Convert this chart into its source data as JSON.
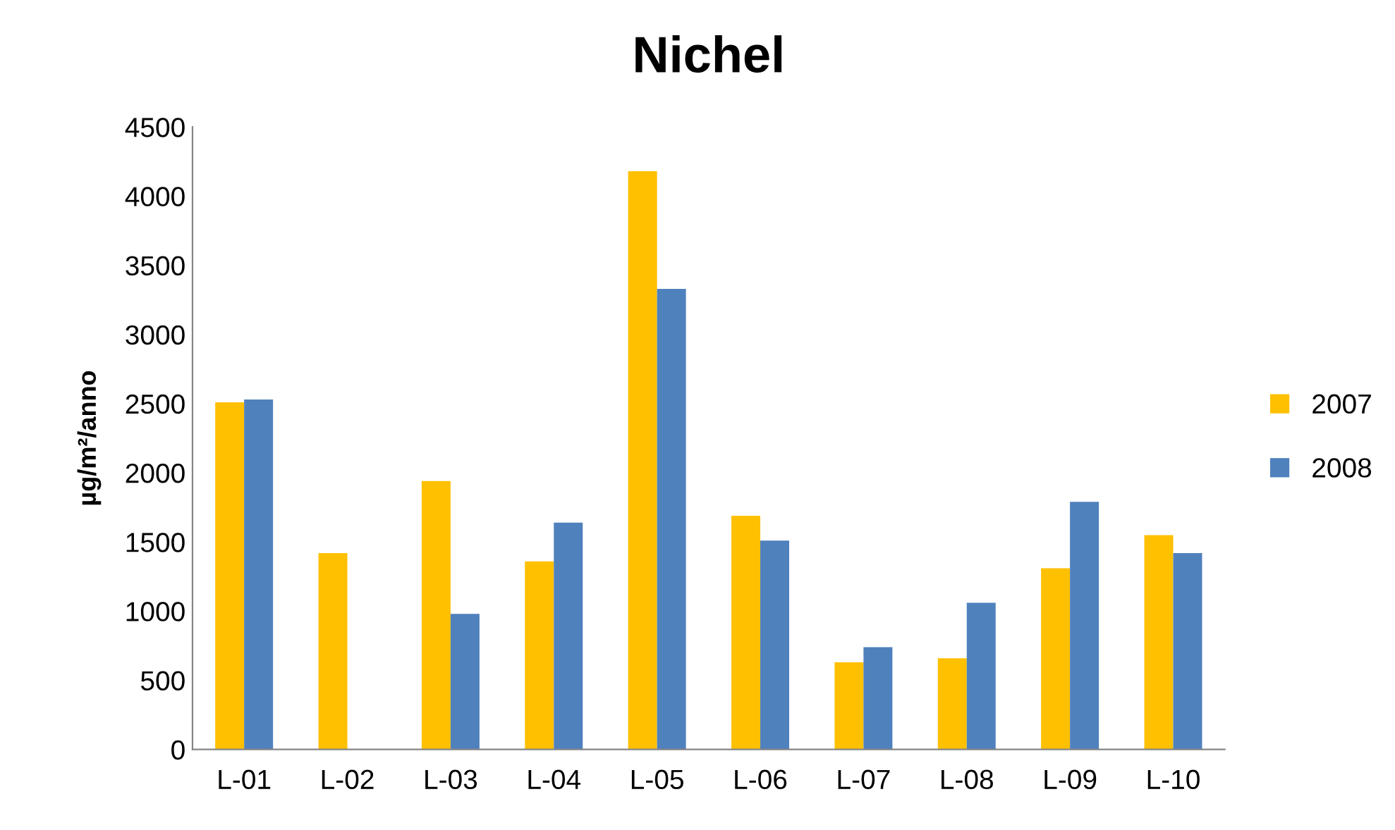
{
  "chart_data": {
    "type": "bar",
    "title": "Nichel",
    "ylabel": "µg/m²/anno",
    "categories": [
      "L-01",
      "L-02",
      "L-03",
      "L-04",
      "L-05",
      "L-06",
      "L-07",
      "L-08",
      "L-09",
      "L-10"
    ],
    "series": [
      {
        "name": "2007",
        "color": "#ffc000",
        "values": [
          2510,
          1420,
          1940,
          1360,
          4180,
          1690,
          630,
          660,
          1310,
          1550
        ]
      },
      {
        "name": "2008",
        "color": "#4f81bd",
        "values": [
          2530,
          null,
          980,
          1640,
          3330,
          1510,
          740,
          1060,
          1790,
          1420
        ]
      }
    ],
    "ylim": [
      0,
      4500
    ],
    "yticks": [
      0,
      500,
      1000,
      1500,
      2000,
      2500,
      3000,
      3500,
      4000,
      4500
    ],
    "grid": false,
    "legend": "right"
  }
}
